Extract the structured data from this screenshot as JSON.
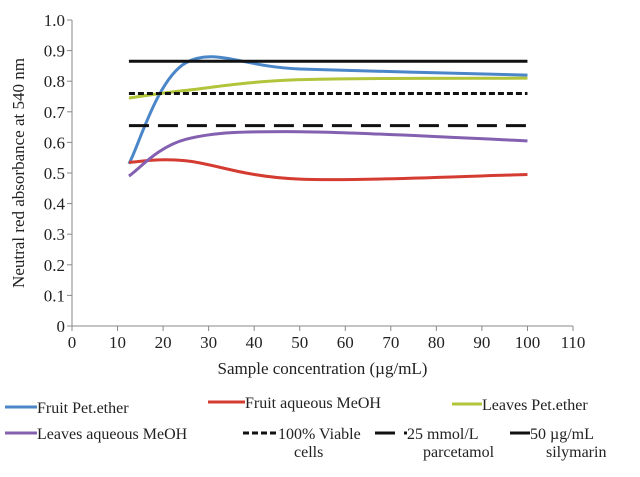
{
  "chart_data": {
    "type": "line",
    "xlabel": "Sample concentration (µg/mL)",
    "ylabel": "Neutral red absorbance at 540 nm",
    "xlim": [
      0,
      110
    ],
    "ylim": [
      0,
      1.0
    ],
    "xticks": [
      0,
      10,
      20,
      30,
      40,
      50,
      60,
      70,
      80,
      90,
      100,
      110
    ],
    "yticks": [
      "0",
      "0.1",
      "0.2",
      "0.3",
      "0.4",
      "0.5",
      "0.6",
      "0.7",
      "0.8",
      "0.9",
      "1.0"
    ],
    "grid": false,
    "legend_position": "bottom",
    "series": [
      {
        "name": "Fruit Pet.ether",
        "color": "#4a86c8",
        "style": "solid",
        "x": [
          12.5,
          25,
          50,
          100
        ],
        "y": [
          0.53,
          0.86,
          0.84,
          0.82
        ]
      },
      {
        "name": "Fruit aqueous MeOH",
        "color": "#d43c32",
        "style": "solid",
        "x": [
          12.5,
          25,
          50,
          100
        ],
        "y": [
          0.535,
          0.54,
          0.48,
          0.495
        ]
      },
      {
        "name": "Leaves Pet.ether",
        "color": "#b2c43a",
        "style": "solid",
        "x": [
          12.5,
          25,
          50,
          100
        ],
        "y": [
          0.745,
          0.77,
          0.805,
          0.81
        ]
      },
      {
        "name": "Leaves aqueous MeOH",
        "color": "#8360b0",
        "style": "solid",
        "x": [
          12.5,
          25,
          50,
          100
        ],
        "y": [
          0.49,
          0.61,
          0.635,
          0.605
        ]
      },
      {
        "name": "100% Viable cells",
        "color": "#111111",
        "style": "dotted",
        "x": [
          12.5,
          100
        ],
        "y": [
          0.76,
          0.76
        ]
      },
      {
        "name": "25 mmol/L parcetamol",
        "color": "#111111",
        "style": "dashed",
        "x": [
          12.5,
          100
        ],
        "y": [
          0.655,
          0.655
        ]
      },
      {
        "name": "50 µg/mL silymarin",
        "color": "#111111",
        "style": "solid-thick",
        "x": [
          12.5,
          100
        ],
        "y": [
          0.865,
          0.865
        ]
      }
    ],
    "legend": [
      {
        "series": 0,
        "lines": [
          "Fruit Pet.ether"
        ]
      },
      {
        "series": 1,
        "lines": [
          "Fruit aqueous MeOH"
        ]
      },
      {
        "series": 2,
        "lines": [
          "Leaves Pet.ether"
        ]
      },
      {
        "series": 3,
        "lines": [
          "Leaves aqueous MeOH"
        ]
      },
      {
        "series": 4,
        "lines": [
          "100% Viable",
          "cells"
        ]
      },
      {
        "series": 5,
        "lines": [
          "25 mmol/L",
          "parcetamol"
        ]
      },
      {
        "series": 6,
        "lines": [
          "50 µg/mL",
          "silymarin"
        ]
      }
    ]
  }
}
